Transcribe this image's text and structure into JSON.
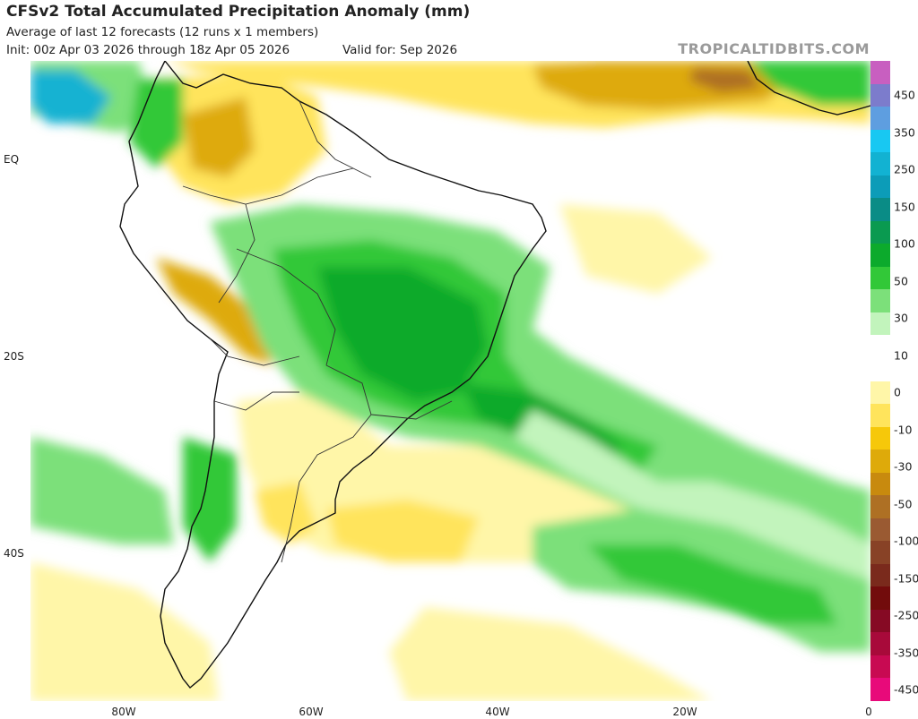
{
  "header": {
    "title": "CFSv2 Total Accumulated Precipitation Anomaly (mm)",
    "subtitle": "Average of last 12 forecasts (12 runs x 1 members)",
    "init": "Init: 00z Apr 03 2026 through 18z Apr 05 2026",
    "valid": "Valid for: Sep 2026",
    "brand": "TROPICALTIDBITS.COM"
  },
  "axes": {
    "lat_labels": [
      "EQ",
      "20S",
      "40S"
    ],
    "lon_labels": [
      "80W",
      "60W",
      "40W",
      "20W",
      "0"
    ]
  },
  "colorbar": {
    "labels": [
      "450",
      "350",
      "250",
      "150",
      "100",
      "50",
      "30",
      "10",
      "0",
      "-10",
      "-30",
      "-50",
      "-100",
      "-150",
      "-250",
      "-350",
      "-450"
    ],
    "colors": [
      "#c85fc0",
      "#7c7ccc",
      "#5e9ee0",
      "#18c8f2",
      "#12b2d2",
      "#0c9cb8",
      "#0a8c86",
      "#0a9a50",
      "#0caa2c",
      "#32c838",
      "#7ce07a",
      "#c2f4bc",
      "#ffffff",
      "#ffffff",
      "#fff6a8",
      "#ffe45c",
      "#f6c80a",
      "#deaa0a",
      "#c88a0e",
      "#ae7024",
      "#9a5a32",
      "#884226",
      "#7a2a1c",
      "#720c0c",
      "#860a24",
      "#a80a3a",
      "#c80a52",
      "#e80a7a"
    ]
  }
}
